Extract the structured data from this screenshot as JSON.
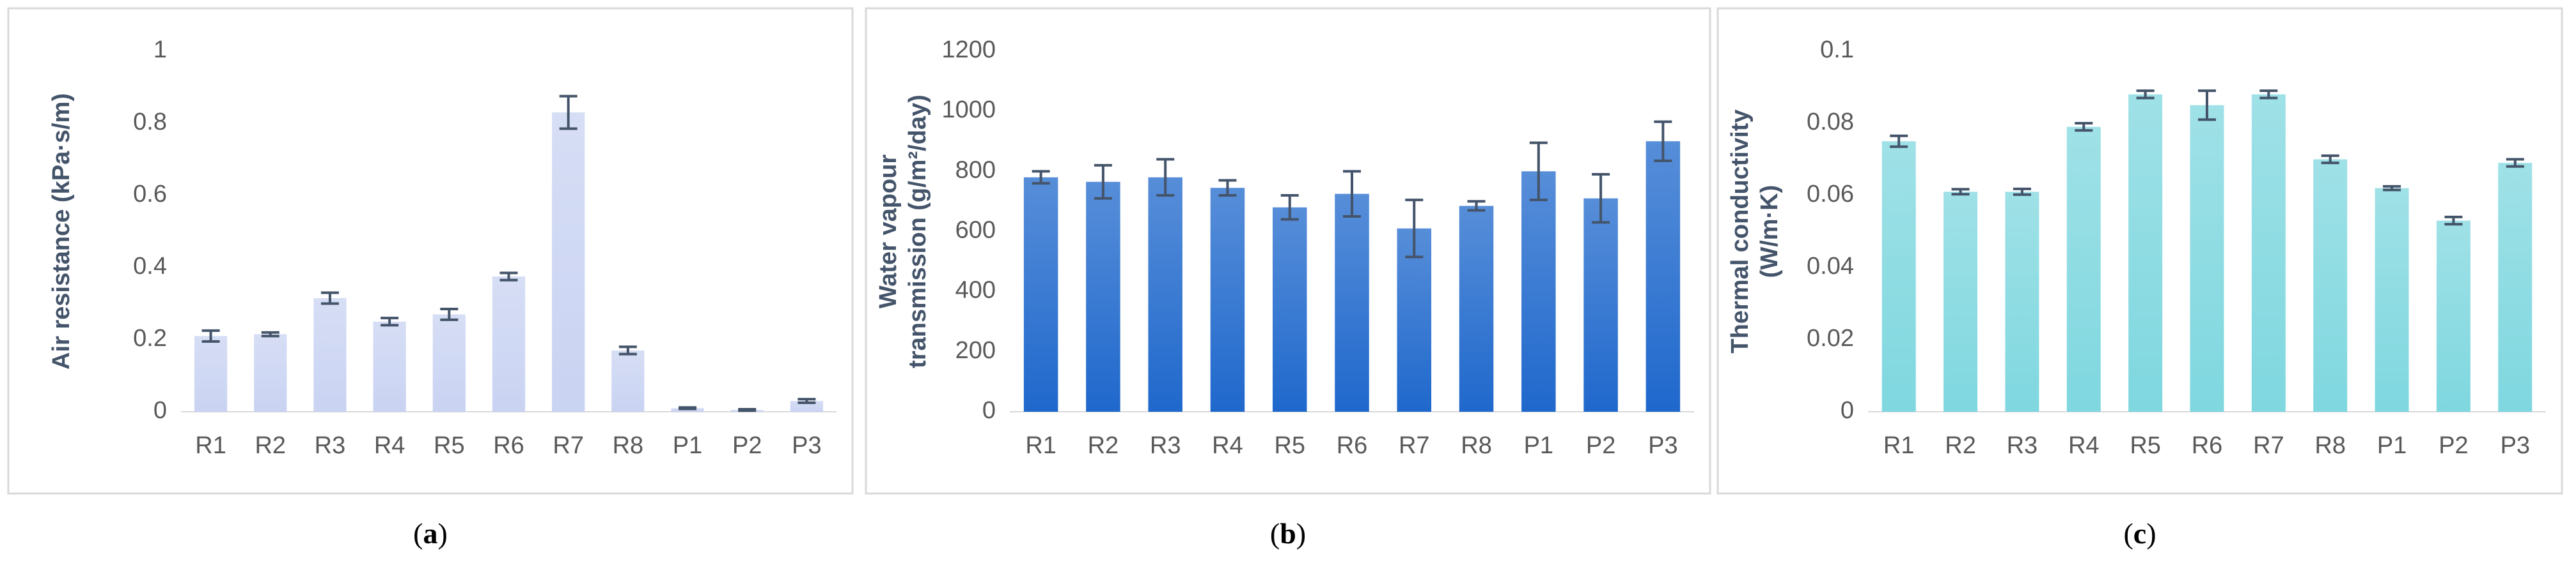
{
  "chart_data": [
    {
      "type": "bar",
      "caption": [
        "(",
        "a",
        ")"
      ],
      "ylabel": [
        "Air resistance (kPa·s/m)"
      ],
      "categories": [
        "R1",
        "R2",
        "R3",
        "R4",
        "R5",
        "R6",
        "R7",
        "R8",
        "P1",
        "P2",
        "P3"
      ],
      "values": [
        0.21,
        0.215,
        0.315,
        0.25,
        0.27,
        0.375,
        0.83,
        0.17,
        0.01,
        0.005,
        0.03
      ],
      "errors": [
        0.015,
        0.005,
        0.015,
        0.01,
        0.015,
        0.01,
        0.045,
        0.01,
        0.002,
        0.002,
        0.005
      ],
      "color": "#c9d3f2",
      "ylim": [
        0,
        1
      ],
      "yticks": [
        0,
        0.2,
        0.4,
        0.6,
        0.8,
        1
      ]
    },
    {
      "type": "bar",
      "caption": [
        "(",
        "b",
        ")"
      ],
      "ylabel": [
        "Water vapour",
        "transmission (g/m²/day)"
      ],
      "categories": [
        "R1",
        "R2",
        "R3",
        "R4",
        "R5",
        "R6",
        "R7",
        "R8",
        "P1",
        "P2",
        "P3"
      ],
      "values": [
        780,
        765,
        780,
        745,
        680,
        725,
        610,
        685,
        800,
        710,
        900
      ],
      "errors": [
        20,
        55,
        60,
        25,
        40,
        75,
        95,
        15,
        95,
        80,
        65
      ],
      "color": "#1f68cc",
      "ylim": [
        0,
        1200
      ],
      "yticks": [
        0,
        200,
        400,
        600,
        800,
        1000,
        1200
      ]
    },
    {
      "type": "bar",
      "caption": [
        "(",
        "c",
        ")"
      ],
      "ylabel": [
        "Thermal conductivity",
        "(W/m·K)"
      ],
      "categories": [
        "R1",
        "R2",
        "R3",
        "R4",
        "R5",
        "R6",
        "R7",
        "R8",
        "P1",
        "P2",
        "P3"
      ],
      "values": [
        0.075,
        0.061,
        0.061,
        0.079,
        0.088,
        0.085,
        0.088,
        0.07,
        0.062,
        0.053,
        0.069
      ],
      "errors": [
        0.0015,
        0.0007,
        0.0008,
        0.001,
        0.001,
        0.004,
        0.001,
        0.001,
        0.0005,
        0.001,
        0.001
      ],
      "color": "#7fd7df",
      "ylim": [
        0,
        0.1
      ],
      "yticks": [
        0,
        0.02,
        0.04,
        0.06,
        0.08,
        0.1
      ]
    }
  ]
}
